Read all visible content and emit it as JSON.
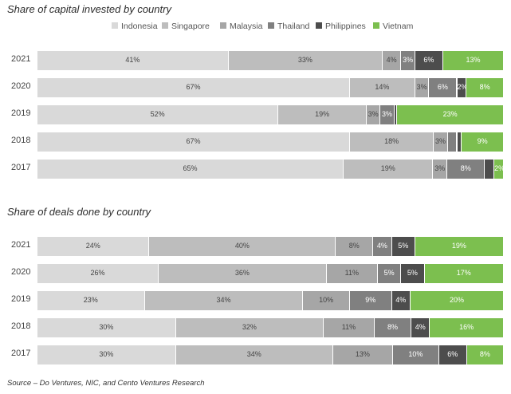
{
  "title_capital": "Share of capital invested by country",
  "title_deals": "Share of deals done by country",
  "source": "Source – Do Ventures, NIC, and Cento Ventures Research",
  "legend": [
    {
      "name": "Indonesia",
      "color": "#d9d9d9"
    },
    {
      "name": "Singapore",
      "color": "#bdbdbd"
    },
    {
      "name": "Malaysia",
      "color": "#a6a6a6"
    },
    {
      "name": "Thailand",
      "color": "#808080"
    },
    {
      "name": "Philippines",
      "color": "#4d4d4d"
    },
    {
      "name": "Vietnam",
      "color": "#7cbf4f"
    }
  ],
  "chart_data": [
    {
      "type": "bar",
      "orientation": "horizontal",
      "stacked": "100%",
      "title": "Share of capital invested by country",
      "categories": [
        "2021",
        "2020",
        "2019",
        "2018",
        "2017"
      ],
      "legend_position": "top",
      "series": [
        {
          "name": "Indonesia",
          "values": [
            41,
            67,
            52,
            67,
            65
          ],
          "labels": [
            "41%",
            "67%",
            "52%",
            "67%",
            "65%"
          ]
        },
        {
          "name": "Singapore",
          "values": [
            33,
            14,
            19,
            18,
            19
          ],
          "labels": [
            "33%",
            "14%",
            "19%",
            "18%",
            "19%"
          ]
        },
        {
          "name": "Malaysia",
          "values": [
            4,
            3,
            3,
            3,
            3
          ],
          "labels": [
            "4%",
            "3%",
            "3%",
            "3%",
            "3%"
          ]
        },
        {
          "name": "Thailand",
          "values": [
            3,
            6,
            3,
            2,
            8
          ],
          "labels": [
            "3%",
            "6%",
            "3%",
            "",
            "8%"
          ]
        },
        {
          "name": "Philippines",
          "values": [
            6,
            2,
            0.6,
            1,
            2
          ],
          "labels": [
            "6%",
            "2%",
            "",
            "",
            ""
          ]
        },
        {
          "name": "Vietnam",
          "values": [
            13,
            8,
            23,
            9,
            2
          ],
          "labels": [
            "13%",
            "8%",
            "23%",
            "9%",
            "2%"
          ]
        }
      ]
    },
    {
      "type": "bar",
      "orientation": "horizontal",
      "stacked": "100%",
      "title": "Share of deals done by country",
      "categories": [
        "2021",
        "2020",
        "2019",
        "2018",
        "2017"
      ],
      "series": [
        {
          "name": "Indonesia",
          "values": [
            24,
            26,
            23,
            30,
            30
          ],
          "labels": [
            "24%",
            "26%",
            "23%",
            "30%",
            "30%"
          ]
        },
        {
          "name": "Singapore",
          "values": [
            40,
            36,
            34,
            32,
            34
          ],
          "labels": [
            "40%",
            "36%",
            "34%",
            "32%",
            "34%"
          ]
        },
        {
          "name": "Malaysia",
          "values": [
            8,
            11,
            10,
            11,
            13
          ],
          "labels": [
            "8%",
            "11%",
            "10%",
            "11%",
            "13%"
          ]
        },
        {
          "name": "Thailand",
          "values": [
            4,
            5,
            9,
            8,
            10
          ],
          "labels": [
            "4%",
            "5%",
            "9%",
            "8%",
            "10%"
          ]
        },
        {
          "name": "Philippines",
          "values": [
            5,
            5,
            4,
            4,
            6
          ],
          "labels": [
            "5%",
            "5%",
            "4%",
            "4%",
            "6%"
          ]
        },
        {
          "name": "Vietnam",
          "values": [
            19,
            17,
            20,
            16,
            8
          ],
          "labels": [
            "19%",
            "17%",
            "20%",
            "16%",
            "8%"
          ]
        }
      ]
    }
  ]
}
